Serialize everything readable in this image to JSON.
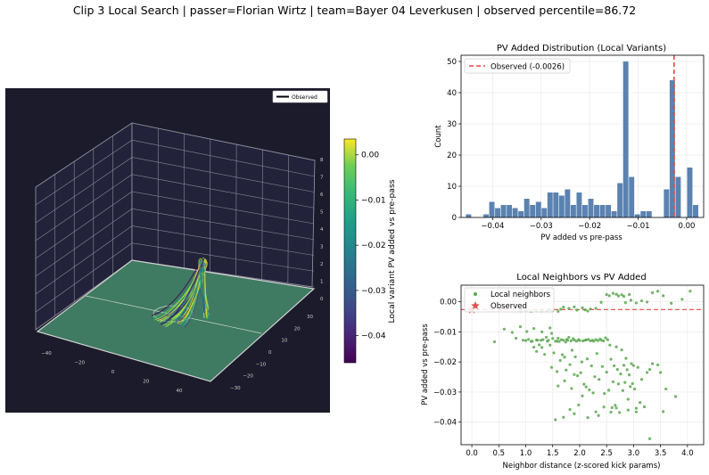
{
  "suptitle": "Clip 3 Local Search | passer=Florian Wirtz | team=Bayer 04 Leverkusen | observed percentile=86.72",
  "chart_data": [
    {
      "type": "3d-line",
      "title": "",
      "legend": [
        "Observed"
      ],
      "legend_placement": "top-right",
      "x_ticks": [
        "−40",
        "−20",
        "0",
        "20",
        "40"
      ],
      "y_ticks": [
        "30",
        "20",
        "10",
        "0",
        "−10",
        "−20",
        "−30"
      ],
      "z_ticks": [
        "0",
        "1",
        "2",
        "3",
        "4",
        "5",
        "6",
        "7",
        "8"
      ],
      "colorbar": {
        "label": "Local variant PV added vs pre-pass",
        "ticks": [
          "0.00",
          "−0.01",
          "−0.02",
          "−0.03",
          "−0.04"
        ],
        "range": [
          -0.046,
          0.0035
        ],
        "colormap": "viridis"
      },
      "colors": {
        "background": "#1b1b2b",
        "pitch": "#3f7a62",
        "pitch_lines": "#cccccc"
      }
    },
    {
      "type": "bar",
      "title": "PV Added Distribution (Local Variants)",
      "xlabel": "PV added vs pre-pass",
      "ylabel": "Count",
      "xlim": [
        -0.0465,
        0.0035
      ],
      "ylim": [
        0,
        52
      ],
      "x_ticks": [
        "−0.04",
        "−0.03",
        "−0.02",
        "−0.01",
        "0.00"
      ],
      "y_ticks": [
        "0",
        "10",
        "20",
        "30",
        "40",
        "50"
      ],
      "bin_width": 0.0012,
      "bins": [
        {
          "x": -0.0449,
          "count": 1
        },
        {
          "x": -0.0413,
          "count": 1
        },
        {
          "x": -0.0401,
          "count": 5
        },
        {
          "x": -0.0389,
          "count": 3
        },
        {
          "x": -0.0377,
          "count": 4
        },
        {
          "x": -0.0365,
          "count": 4
        },
        {
          "x": -0.0353,
          "count": 3
        },
        {
          "x": -0.0341,
          "count": 2
        },
        {
          "x": -0.0329,
          "count": 6
        },
        {
          "x": -0.0317,
          "count": 4
        },
        {
          "x": -0.0305,
          "count": 5
        },
        {
          "x": -0.0293,
          "count": 3
        },
        {
          "x": -0.0281,
          "count": 8
        },
        {
          "x": -0.0269,
          "count": 8
        },
        {
          "x": -0.0257,
          "count": 7
        },
        {
          "x": -0.0245,
          "count": 9
        },
        {
          "x": -0.0233,
          "count": 4
        },
        {
          "x": -0.0221,
          "count": 8
        },
        {
          "x": -0.0209,
          "count": 4
        },
        {
          "x": -0.0197,
          "count": 6
        },
        {
          "x": -0.0185,
          "count": 4
        },
        {
          "x": -0.0173,
          "count": 4
        },
        {
          "x": -0.0161,
          "count": 4
        },
        {
          "x": -0.0149,
          "count": 2
        },
        {
          "x": -0.0137,
          "count": 11
        },
        {
          "x": -0.0125,
          "count": 50
        },
        {
          "x": -0.0113,
          "count": 13
        },
        {
          "x": -0.0101,
          "count": 1
        },
        {
          "x": -0.0089,
          "count": 2
        },
        {
          "x": -0.0077,
          "count": 2
        },
        {
          "x": -0.0041,
          "count": 9
        },
        {
          "x": -0.0029,
          "count": 44
        },
        {
          "x": -0.0017,
          "count": 13
        },
        {
          "x": 0.0007,
          "count": 16
        },
        {
          "x": 0.0019,
          "count": 4
        }
      ],
      "observed": {
        "label": "Observed (-0.0026)",
        "value": -0.0026,
        "color": "#e8473f"
      },
      "bar_color": "#5b82b0",
      "legend_placement": "top-left"
    },
    {
      "type": "scatter",
      "title": "Local Neighbors vs PV Added",
      "xlabel": "Neighbor distance (z-scored kick params)",
      "ylabel": "PV added vs pre-pass",
      "xlim": [
        -0.2,
        4.3
      ],
      "ylim": [
        -0.0475,
        0.0055
      ],
      "x_ticks": [
        "0.0",
        "0.5",
        "1.0",
        "1.5",
        "2.0",
        "2.5",
        "3.0",
        "3.5",
        "4.0"
      ],
      "y_ticks": [
        "0.00",
        "−0.01",
        "−0.02",
        "−0.03",
        "−0.04"
      ],
      "series": [
        {
          "name": "Local neighbors",
          "color": "#5aa64f",
          "points": [
            [
              0.42,
              -0.0133
            ],
            [
              0.6,
              -0.0091
            ],
            [
              0.75,
              -0.0102
            ],
            [
              0.82,
              -0.0121
            ],
            [
              0.9,
              -0.0083
            ],
            [
              0.95,
              -0.0128
            ],
            [
              1.0,
              -0.0129
            ],
            [
              1.02,
              -0.0099
            ],
            [
              1.05,
              -0.0125
            ],
            [
              1.1,
              -0.0132
            ],
            [
              1.12,
              -0.0131
            ],
            [
              1.15,
              -0.0089
            ],
            [
              1.2,
              -0.0127
            ],
            [
              1.22,
              -0.0128
            ],
            [
              1.25,
              -0.0143
            ],
            [
              1.28,
              -0.0128
            ],
            [
              1.3,
              -0.0152
            ],
            [
              1.32,
              -0.0126
            ],
            [
              1.35,
              -0.0175
            ],
            [
              1.38,
              -0.0118
            ],
            [
              1.4,
              -0.0131
            ],
            [
              1.42,
              -0.0128
            ],
            [
              1.45,
              -0.0087
            ],
            [
              1.48,
              -0.0105
            ],
            [
              1.5,
              -0.0122
            ],
            [
              1.52,
              -0.017
            ],
            [
              1.55,
              -0.0131
            ],
            [
              1.58,
              -0.0131
            ],
            [
              1.6,
              -0.0121
            ],
            [
              1.62,
              -0.0132
            ],
            [
              1.64,
              -0.0195
            ],
            [
              1.66,
              -0.0126
            ],
            [
              1.68,
              -0.0176
            ],
            [
              1.7,
              -0.0128
            ],
            [
              1.72,
              -0.0184
            ],
            [
              1.74,
              -0.0134
            ],
            [
              1.76,
              -0.0125
            ],
            [
              1.78,
              -0.0128
            ],
            [
              1.8,
              -0.0118
            ],
            [
              1.82,
              -0.0209
            ],
            [
              1.84,
              -0.013
            ],
            [
              1.86,
              -0.0161
            ],
            [
              1.88,
              -0.0123
            ],
            [
              1.9,
              -0.0127
            ],
            [
              1.92,
              -0.0183
            ],
            [
              1.94,
              -0.0131
            ],
            [
              1.96,
              -0.0246
            ],
            [
              1.98,
              -0.0126
            ],
            [
              2.0,
              -0.0129
            ],
            [
              2.02,
              -0.0236
            ],
            [
              2.04,
              -0.02
            ],
            [
              2.06,
              -0.013
            ],
            [
              2.08,
              -0.0274
            ],
            [
              2.1,
              -0.0128
            ],
            [
              2.12,
              -0.0127
            ],
            [
              2.14,
              -0.019
            ],
            [
              2.16,
              -0.0125
            ],
            [
              2.18,
              -0.0293
            ],
            [
              2.2,
              -0.013
            ],
            [
              2.22,
              -0.0213
            ],
            [
              2.24,
              -0.0128
            ],
            [
              2.26,
              -0.0131
            ],
            [
              2.28,
              -0.0249
            ],
            [
              2.3,
              -0.0126
            ],
            [
              2.32,
              -0.0172
            ],
            [
              2.34,
              -0.0129
            ],
            [
              2.36,
              -0.0258
            ],
            [
              2.38,
              -0.0124
            ],
            [
              2.4,
              -0.0128
            ],
            [
              2.42,
              -0.0215
            ],
            [
              2.44,
              -0.013
            ],
            [
              2.46,
              -0.0305
            ],
            [
              2.48,
              -0.012
            ],
            [
              2.5,
              -0.0234
            ],
            [
              2.52,
              -0.0126
            ],
            [
              2.54,
              -0.0294
            ],
            [
              2.56,
              -0.0144
            ],
            [
              2.58,
              -0.0191
            ],
            [
              2.6,
              -0.0352
            ],
            [
              2.62,
              -0.0266
            ],
            [
              2.64,
              -0.0213
            ],
            [
              2.66,
              -0.0344
            ],
            [
              2.68,
              -0.015
            ],
            [
              2.7,
              -0.0225
            ],
            [
              2.72,
              -0.0273
            ],
            [
              2.74,
              -0.0368
            ],
            [
              2.76,
              -0.024
            ],
            [
              2.78,
              -0.016
            ],
            [
              2.8,
              -0.0295
            ],
            [
              2.82,
              -0.0211
            ],
            [
              2.84,
              -0.0268
            ],
            [
              2.86,
              -0.0188
            ],
            [
              2.88,
              -0.0226
            ],
            [
              2.9,
              -0.0324
            ],
            [
              2.92,
              -0.0243
            ],
            [
              2.94,
              -0.0282
            ],
            [
              2.96,
              -0.0206
            ],
            [
              2.98,
              -0.0272
            ],
            [
              3.0,
              -0.0212
            ],
            [
              3.02,
              -0.029
            ],
            [
              3.05,
              -0.0354
            ],
            [
              3.08,
              -0.0218
            ],
            [
              3.12,
              -0.0335
            ],
            [
              3.15,
              -0.0258
            ],
            [
              3.2,
              -0.0349
            ],
            [
              3.3,
              -0.0225
            ],
            [
              3.35,
              -0.0206
            ],
            [
              3.45,
              -0.021
            ],
            [
              3.5,
              -0.0235
            ],
            [
              3.6,
              -0.029
            ],
            [
              3.78,
              -0.0315
            ],
            [
              1.55,
              -0.0392
            ],
            [
              1.7,
              -0.0384
            ],
            [
              1.82,
              -0.0358
            ],
            [
              1.9,
              -0.0372
            ],
            [
              1.98,
              -0.0343
            ],
            [
              2.15,
              -0.0385
            ],
            [
              2.3,
              -0.0366
            ],
            [
              2.35,
              -0.0378
            ],
            [
              2.45,
              -0.035
            ],
            [
              2.58,
              -0.0367
            ],
            [
              2.68,
              -0.0353
            ],
            [
              1.6,
              -0.028
            ],
            [
              1.72,
              -0.0263
            ],
            [
              1.85,
              -0.0288
            ],
            [
              2.05,
              -0.0313
            ],
            [
              2.12,
              -0.0283
            ],
            [
              2.25,
              -0.0303
            ],
            [
              1.48,
              -0.0218
            ],
            [
              1.58,
              -0.0232
            ],
            [
              1.75,
              -0.0227
            ],
            [
              1.9,
              -0.0242
            ],
            [
              1.15,
              -0.0151
            ],
            [
              1.2,
              -0.0165
            ],
            [
              1.3,
              -0.01
            ],
            [
              1.45,
              -0.0144
            ],
            [
              2.5,
              0.0024
            ],
            [
              2.55,
              0.002
            ],
            [
              2.62,
              0.0028
            ],
            [
              2.68,
              0.0025
            ],
            [
              2.72,
              0.0019
            ],
            [
              2.78,
              0.0023
            ],
            [
              2.82,
              0.0018
            ],
            [
              2.92,
              0.0024
            ],
            [
              3.35,
              0.003
            ],
            [
              3.45,
              0.0035
            ],
            [
              3.55,
              0.002
            ],
            [
              4.05,
              0.0035
            ],
            [
              3.7,
              -0.0005
            ],
            [
              3.9,
              0.0008
            ],
            [
              2.85,
              -0.0003
            ],
            [
              2.95,
              0.0005
            ],
            [
              3.25,
              -0.0001
            ],
            [
              2.4,
              -0.0002
            ],
            [
              3.15,
              0.0003
            ],
            [
              3.05,
              -0.0004
            ],
            [
              1.7,
              -0.0018
            ],
            [
              1.8,
              -0.0022
            ],
            [
              1.95,
              -0.0028
            ],
            [
              2.05,
              -0.002
            ],
            [
              2.15,
              -0.0031
            ],
            [
              1.65,
              -0.0025
            ],
            [
              1.9,
              -0.0017
            ],
            [
              2.1,
              -0.0027
            ],
            [
              1.6,
              -0.0032
            ],
            [
              1.5,
              -0.003
            ],
            [
              1.45,
              -0.0026
            ],
            [
              1.4,
              -0.003
            ],
            [
              1.3,
              -0.0031
            ],
            [
              1.2,
              -0.003
            ],
            [
              1.1,
              -0.0032
            ],
            [
              1.0,
              -0.0029
            ],
            [
              0.9,
              -0.0031
            ],
            [
              2.2,
              -0.0024
            ],
            [
              2.3,
              -0.0022
            ],
            [
              3.3,
              -0.0455
            ],
            [
              3.55,
              -0.0365
            ],
            [
              3.05,
              -0.0366
            ],
            [
              3.25,
              -0.0235
            ],
            [
              2.9,
              -0.036
            ]
          ]
        },
        {
          "name": "Observed",
          "marker": "star",
          "color": "#d9534f",
          "points": [
            [
              0.0,
              -0.0026
            ]
          ]
        }
      ],
      "reference_line": {
        "value": -0.0026,
        "color": "#e8473f",
        "style": "dashed"
      },
      "legend_placement": "top-left"
    }
  ]
}
